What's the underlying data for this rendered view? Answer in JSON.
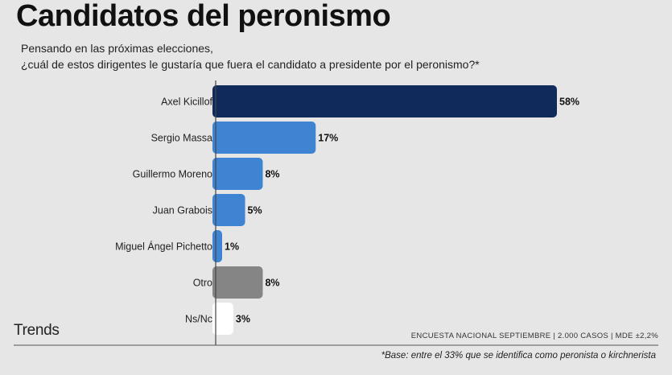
{
  "title": "Candidatos del peronismo",
  "subtitle_line1": "Pensando en las próximas elecciones,",
  "subtitle_line2": "¿cuál de estos dirigentes le gustaría que fuera el candidato a presidente por el peronismo?*",
  "brand": "Trends",
  "source": "ENCUESTA NACIONAL SEPTIEMBRE | 2.000 CASOS | MDE ±2,2%",
  "footnote": "*Base: entre el 33% que se identifica como peronista o kirchnerista",
  "chart_data": {
    "type": "bar",
    "orientation": "horizontal",
    "categories": [
      "Axel Kicillof",
      "Sergio Massa",
      "Guillermo Moreno",
      "Juan Grabois",
      "Miguel Ángel Pichetto",
      "Otro",
      "Ns/Nc"
    ],
    "values": [
      58,
      17,
      8,
      5,
      1,
      8,
      3
    ],
    "value_labels": [
      "58%",
      "17%",
      "8%",
      "5%",
      "1%",
      "8%",
      "3%"
    ],
    "colors": [
      "#102a5c",
      "#3f84d2",
      "#3f84d2",
      "#3f84d2",
      "#3f84d2",
      "#858585",
      "#ffffff"
    ],
    "xlim": [
      0,
      58
    ],
    "grid": false,
    "legend": "none"
  }
}
